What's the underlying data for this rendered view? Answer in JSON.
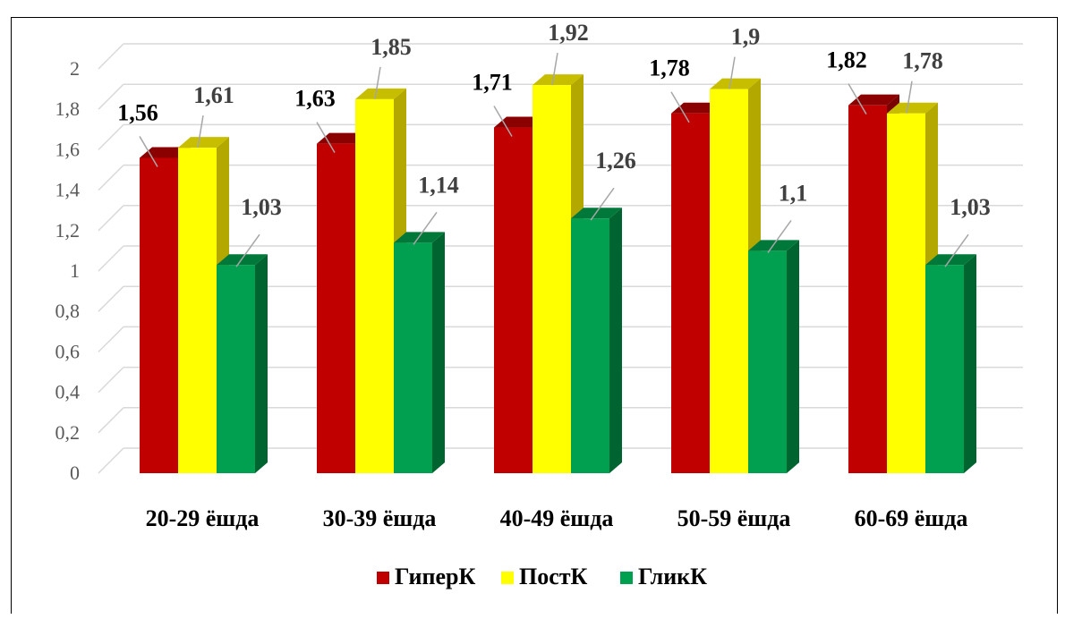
{
  "colors": {
    "series": [
      {
        "front": "#c00000",
        "side": "#7a0000",
        "top": "#8b0000"
      },
      {
        "front": "#ffff00",
        "side": "#b3a800",
        "top": "#c8be00"
      },
      {
        "front": "#00a050",
        "side": "#006430",
        "top": "#00783a"
      }
    ],
    "grid": "#d9d9d9"
  },
  "chart_data": {
    "type": "bar",
    "title": "",
    "xlabel": "",
    "ylabel": "",
    "categories": [
      "20-29 ёшда",
      "30-39 ёшда",
      "40-49 ёшда",
      "50-59 ёшда",
      "60-69 ёшда"
    ],
    "series": [
      {
        "name": "ГиперК",
        "values": [
          1.56,
          1.63,
          1.71,
          1.78,
          1.82
        ],
        "labels": [
          "1,56",
          "1,63",
          "1,71",
          "1,78",
          "1,82"
        ]
      },
      {
        "name": "ПостК",
        "values": [
          1.61,
          1.85,
          1.92,
          1.9,
          1.78
        ],
        "labels": [
          "1,61",
          "1,85",
          "1,92",
          "1,9",
          "1,78"
        ]
      },
      {
        "name": "ГликК",
        "values": [
          1.03,
          1.14,
          1.26,
          1.1,
          1.03
        ],
        "labels": [
          "1,03",
          "1,14",
          "1,26",
          "1,1",
          "1,03"
        ]
      }
    ],
    "yticks": [
      "0",
      "0,2",
      "0,4",
      "0,6",
      "0,8",
      "1",
      "1,2",
      "1,4",
      "1,6",
      "1,8",
      "2"
    ],
    "ylim": [
      0,
      2
    ],
    "grid": true,
    "legend": "bottom",
    "style": "3d-clustered-column"
  }
}
